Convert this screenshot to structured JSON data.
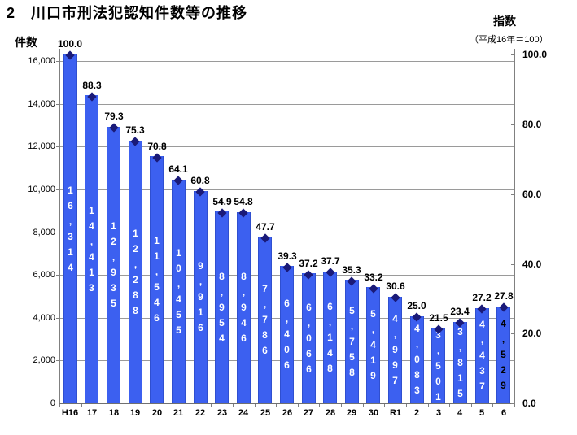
{
  "title": "2　川口市刑法犯認知件数等の推移",
  "left_axis": {
    "label": "件数",
    "ticks": [
      "0",
      "2,000",
      "4,000",
      "6,000",
      "8,000",
      "10,000",
      "12,000",
      "14,000",
      "16,000"
    ],
    "min": 0,
    "max": 16000,
    "step": 2000
  },
  "right_axis": {
    "label": "指数",
    "sublabel": "（平成16年＝100）",
    "ticks": [
      "0.0",
      "20.0",
      "40.0",
      "60.0",
      "80.0",
      "100.0"
    ],
    "min": 0,
    "max": 100,
    "step": 20
  },
  "chart_data": {
    "type": "bar",
    "title": "2　川口市刑法犯認知件数等の推移",
    "categories": [
      "H16",
      "17",
      "18",
      "19",
      "20",
      "21",
      "22",
      "23",
      "24",
      "25",
      "26",
      "27",
      "28",
      "29",
      "30",
      "R1",
      "2",
      "3",
      "4",
      "5",
      "6"
    ],
    "series": [
      {
        "name": "件数",
        "type": "bar",
        "axis": "left",
        "values": [
          16314,
          14413,
          12935,
          12288,
          11546,
          10455,
          9916,
          8954,
          8946,
          7786,
          6406,
          6066,
          6148,
          5758,
          5419,
          4997,
          4083,
          3501,
          3815,
          4437,
          4529
        ],
        "labels": [
          "16,314",
          "14,413",
          "12,935",
          "12,288",
          "11,546",
          "10,455",
          "9,916",
          "8,954",
          "8,946",
          "7,786",
          "6,406",
          "6,066",
          "6,148",
          "5,758",
          "5,419",
          "4,997",
          "4,083",
          "3,501",
          "3,815",
          "4,437",
          "4,529"
        ]
      },
      {
        "name": "指数",
        "type": "scatter-diamond",
        "axis": "right",
        "values": [
          100.0,
          88.3,
          79.3,
          75.3,
          70.8,
          64.1,
          60.8,
          54.9,
          54.8,
          47.7,
          39.3,
          37.2,
          37.7,
          35.3,
          33.2,
          30.6,
          25.0,
          21.5,
          23.4,
          27.2,
          27.8
        ],
        "labels": [
          "100.0",
          "88.3",
          "79.3",
          "75.3",
          "70.8",
          "64.1",
          "60.8",
          "54.9",
          "54.8",
          "47.7",
          "39.3",
          "37.2",
          "37.7",
          "35.3",
          "33.2",
          "30.6",
          "25.0",
          "21.5",
          "23.4",
          "27.2",
          "27.8"
        ]
      }
    ],
    "xlabel": "",
    "ylabel_left": "件数",
    "ylabel_right": "指数（平成16年＝100）",
    "ylim_left": [
      0,
      16600
    ],
    "ylim_right": [
      0,
      100
    ],
    "grid": true,
    "legend_position": "none"
  },
  "colors": {
    "bar": "#3c60f0",
    "bar_border": "#2f4fd0",
    "marker": "#1a1a78",
    "grid": "#9a9a9a",
    "axis": "#808080",
    "bar_label": "#ffffff",
    "bar_label_last": "#000000",
    "text": "#000000"
  }
}
